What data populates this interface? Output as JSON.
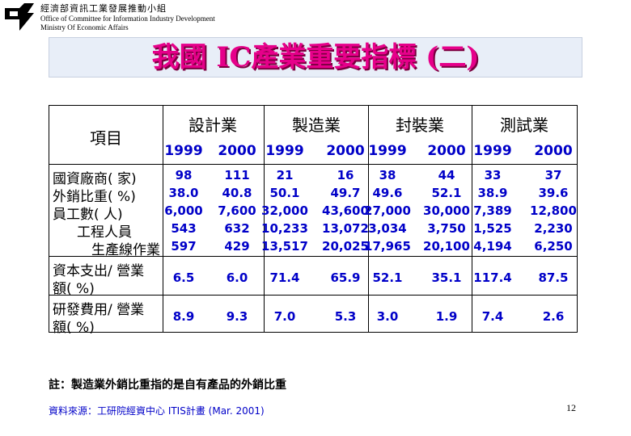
{
  "header": {
    "org_cn": "經濟部資訊工業發展推動小組",
    "org_en": "Office of Committee for Information Industry Development",
    "ministry_en": "Ministry Of Economic Affairs",
    "logo_icon": "ministry-logo-icon"
  },
  "title": "我國 IC產業重要指標 (二)",
  "table": {
    "item_header": "項目",
    "groups": [
      "設計業",
      "製造業",
      "封裝業",
      "測試業"
    ],
    "years": [
      "1999",
      "2000",
      "1999",
      "2000",
      "1999",
      "2000",
      "1999",
      "2000"
    ],
    "top_rows": [
      {
        "label": "國資廠商( 家)",
        "values": [
          "98",
          "111",
          "21",
          "16",
          "38",
          "44",
          "33",
          "37"
        ]
      },
      {
        "label": "外銷比重( %)",
        "values": [
          "38.0",
          "40.8",
          "50.1",
          "49.7",
          "49.6",
          "52.1",
          "38.9",
          "39.6"
        ]
      },
      {
        "label": "員工數( 人)",
        "values": [
          "6,000",
          "7,600",
          "32,000",
          "43,600",
          "27,000",
          "30,000",
          "7,389",
          "12,800"
        ]
      },
      {
        "label": "工程人員",
        "values": [
          "543",
          "632",
          "10,233",
          "13,072",
          "3,034",
          "3,750",
          "1,525",
          "2,230"
        ]
      },
      {
        "label": "生產線作業",
        "values": [
          "597",
          "429",
          "13,517",
          "20,025",
          "17,965",
          "20,100",
          "4,194",
          "6,250"
        ]
      }
    ],
    "capex": {
      "label_1": "資本支出/ 營業",
      "label_2": "額( %)",
      "values": [
        "6.5",
        "6.0",
        "71.4",
        "65.9",
        "52.1",
        "35.1",
        "117.4",
        "87.5"
      ]
    },
    "rnd": {
      "label_1": "研發費用/ 營業",
      "label_2": "額( %)",
      "values": [
        "8.9",
        "9.3",
        "7.0",
        "5.3",
        "3.0",
        "1.9",
        "7.4",
        "2.6"
      ]
    }
  },
  "note": "註：製造業外銷比重指的是自有產品的外銷比重",
  "source": "資料來源：工研院經資中心 ITIS計畫 (Mar. 2001)",
  "page_number": "12",
  "colors": {
    "title": "#e6008a",
    "values": "#0000c8",
    "title_bg": "#e8eef8"
  }
}
